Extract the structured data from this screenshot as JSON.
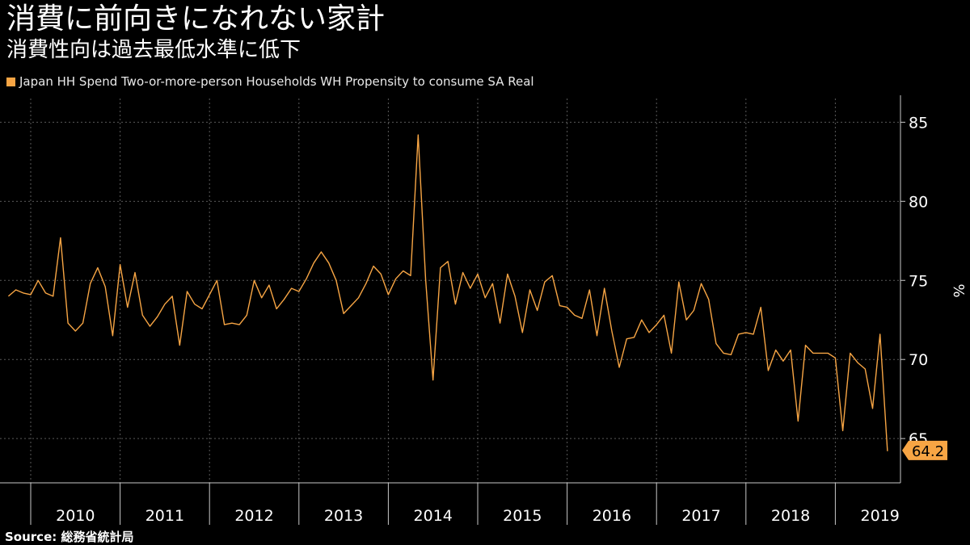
{
  "header": {
    "title": "消費に前向きになれない家計",
    "subtitle": "消費性向は過去最低水準に低下"
  },
  "footer": {
    "source_label": "Source:",
    "source_value": "総務省統計局"
  },
  "colors": {
    "background": "#000000",
    "series": "#f7a544",
    "grid": "#5a5a5a",
    "axis": "#c8c8c8"
  },
  "chart_data": {
    "type": "line",
    "title": "消費に前向きになれない家計",
    "subtitle": "消費性向は過去最低水準に低下",
    "ylabel": "%",
    "xlabel": "",
    "ylim": [
      62.2,
      86.5
    ],
    "yticks": [
      65,
      70,
      75,
      80,
      85
    ],
    "xticks": [
      "2010",
      "2011",
      "2012",
      "2013",
      "2014",
      "2015",
      "2016",
      "2017",
      "2018",
      "2019"
    ],
    "grid": true,
    "legend_position": "top-left",
    "last_value_label": "64.2",
    "series": [
      {
        "name": "Japan HH Spend Two-or-more-person Households WH Propensity to consume SA Real",
        "start": "2009-10",
        "frequency": "monthly",
        "values": [
          74.0,
          74.4,
          74.2,
          74.1,
          75.0,
          74.2,
          74.0,
          77.7,
          72.3,
          71.8,
          72.3,
          74.8,
          75.8,
          74.6,
          71.5,
          76.0,
          73.3,
          75.5,
          72.8,
          72.1,
          72.7,
          73.5,
          74.0,
          70.9,
          74.3,
          73.5,
          73.2,
          74.1,
          75.0,
          72.2,
          72.3,
          72.2,
          72.8,
          75.0,
          73.9,
          74.7,
          73.2,
          73.8,
          74.5,
          74.3,
          75.1,
          76.1,
          76.8,
          76.1,
          75.0,
          72.9,
          73.4,
          73.9,
          74.8,
          75.9,
          75.4,
          74.1,
          75.1,
          75.6,
          75.3,
          84.2,
          75.1,
          68.7,
          75.8,
          76.2,
          73.5,
          75.5,
          74.5,
          75.4,
          73.9,
          74.8,
          72.3,
          75.4,
          74.0,
          71.7,
          74.4,
          73.1,
          74.9,
          75.3,
          73.4,
          73.3,
          72.8,
          72.6,
          74.4,
          71.5,
          74.5,
          71.8,
          69.5,
          71.3,
          71.4,
          72.5,
          71.7,
          72.2,
          72.8,
          70.4,
          74.9,
          72.5,
          73.1,
          74.8,
          73.8,
          71.0,
          70.4,
          70.3,
          71.6,
          71.7,
          71.6,
          73.3,
          69.3,
          70.6,
          69.9,
          70.6,
          66.1,
          70.9,
          70.4,
          70.4,
          70.4,
          70.1,
          65.5,
          70.4,
          69.8,
          69.4,
          66.9,
          71.6,
          64.2
        ]
      }
    ]
  }
}
